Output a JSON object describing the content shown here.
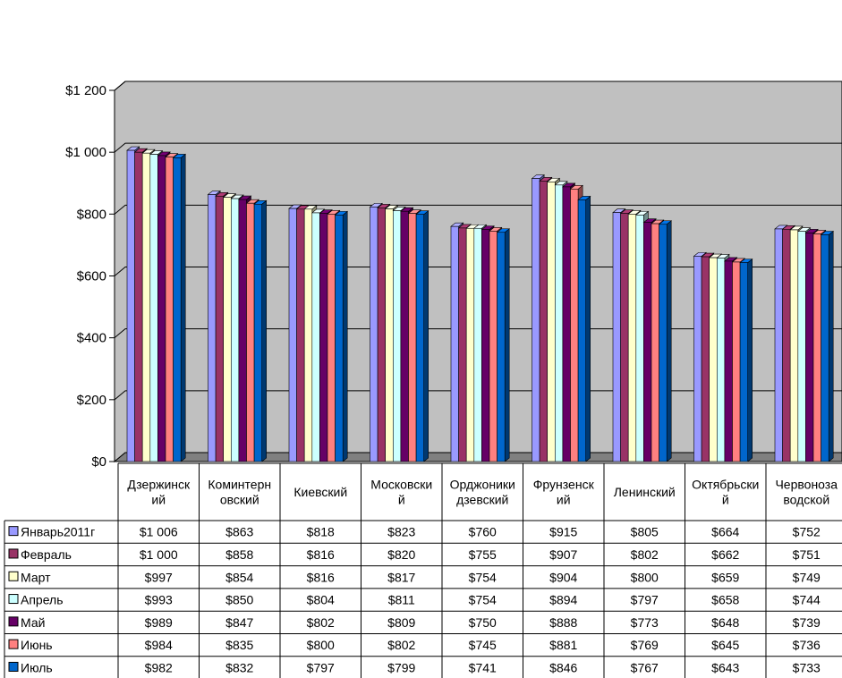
{
  "chart_data": {
    "type": "bar",
    "title": "",
    "xlabel": "",
    "ylabel": "",
    "ylim": [
      0,
      1200
    ],
    "y_ticks": [
      "$0",
      "$200",
      "$400",
      "$600",
      "$800",
      "$1 000",
      "$1 200"
    ],
    "y_tick_values": [
      0,
      200,
      400,
      600,
      800,
      1000,
      1200
    ],
    "grid": true,
    "legend_placement": "data-table-left",
    "categories": [
      "Дзержинский",
      "Коминтерновский",
      "Киевский",
      "Московский",
      "Орджоникидзевский",
      "Фрунзенский",
      "Ленинский",
      "Октябрьский",
      "Червонозаводской"
    ],
    "category_label_lines": [
      [
        "Дзержинск",
        "ий"
      ],
      [
        "Коминтерн",
        "овский"
      ],
      [
        "Киевский"
      ],
      [
        "Московски",
        "й"
      ],
      [
        "Орджоники",
        "дзевский"
      ],
      [
        "Фрунзенск",
        "ий"
      ],
      [
        "Ленинский"
      ],
      [
        "Октябрьски",
        "й"
      ],
      [
        "Червоноза",
        "водской"
      ]
    ],
    "series": [
      {
        "name": "Январь2011г",
        "color": "#9999FF",
        "values": [
          1006,
          863,
          818,
          823,
          760,
          915,
          805,
          664,
          752
        ],
        "labels": [
          "$1 006",
          "$863",
          "$818",
          "$823",
          "$760",
          "$915",
          "$805",
          "$664",
          "$752"
        ]
      },
      {
        "name": "Февраль",
        "color": "#993366",
        "values": [
          1000,
          858,
          816,
          820,
          755,
          907,
          802,
          662,
          751
        ],
        "labels": [
          "$1 000",
          "$858",
          "$816",
          "$820",
          "$755",
          "$907",
          "$802",
          "$662",
          "$751"
        ]
      },
      {
        "name": "Март",
        "color": "#FFFFCC",
        "values": [
          997,
          854,
          816,
          817,
          754,
          904,
          800,
          659,
          749
        ],
        "labels": [
          "$997",
          "$854",
          "$816",
          "$817",
          "$754",
          "$904",
          "$800",
          "$659",
          "$749"
        ]
      },
      {
        "name": "Апрель",
        "color": "#CCFFFF",
        "values": [
          993,
          850,
          804,
          811,
          754,
          894,
          797,
          658,
          744
        ],
        "labels": [
          "$993",
          "$850",
          "$804",
          "$811",
          "$754",
          "$894",
          "$797",
          "$658",
          "$744"
        ]
      },
      {
        "name": "Май",
        "color": "#660066",
        "values": [
          989,
          847,
          802,
          809,
          750,
          888,
          773,
          648,
          739
        ],
        "labels": [
          "$989",
          "$847",
          "$802",
          "$809",
          "$750",
          "$888",
          "$773",
          "$648",
          "$739"
        ]
      },
      {
        "name": "Июнь",
        "color": "#FF8080",
        "values": [
          984,
          835,
          800,
          802,
          745,
          881,
          769,
          645,
          736
        ],
        "labels": [
          "$984",
          "$835",
          "$800",
          "$802",
          "$745",
          "$881",
          "$769",
          "$645",
          "$736"
        ]
      },
      {
        "name": "Июль",
        "color": "#0066CC",
        "values": [
          982,
          832,
          797,
          799,
          741,
          846,
          767,
          643,
          733
        ],
        "labels": [
          "$982",
          "$832",
          "$797",
          "$799",
          "$741",
          "$846",
          "$767",
          "$643",
          "$733"
        ]
      }
    ],
    "colors": {
      "plot_background": "#C0C0C0",
      "floor": "#808080",
      "gridline": "#000000"
    }
  }
}
